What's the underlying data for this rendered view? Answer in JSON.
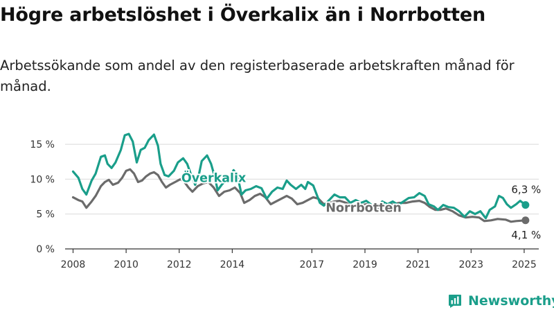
{
  "title": "Högre arbetslöshet i Överkalix än i Norrbotten",
  "subtitle": "Arbetssökande som andel av den registerbaserade arbetskraften månad för månad.",
  "brand": "Newsworthy",
  "colors": {
    "overkalix": "#1a9e8a",
    "norrbotten": "#6b6b6b",
    "grid": "#d9d9d9",
    "axis": "#333333"
  },
  "chart_data": {
    "type": "line",
    "title": "Högre arbetslöshet i Överkalix än i Norrbotten",
    "subtitle": "Arbetssökande som andel av den registerbaserade arbetskraften månad för månad.",
    "xlabel": "",
    "ylabel": "",
    "ylim": [
      0,
      17.5
    ],
    "xlim": [
      2007.7,
      2025.55
    ],
    "y_ticks": [
      0,
      5,
      10,
      15
    ],
    "y_tick_labels": [
      "0 %",
      "5 %",
      "10 %",
      "15 %"
    ],
    "x_ticks": [
      2008,
      2010,
      2012,
      2014,
      2017,
      2019,
      2021,
      2023,
      2025
    ],
    "x_tick_labels": [
      "2008",
      "2010",
      "2012",
      "2014",
      "2017",
      "2019",
      "2021",
      "2023",
      "2025"
    ],
    "grid": true,
    "series": [
      {
        "name": "Överkalix",
        "end_label": "6,3 %",
        "points": [
          [
            2008.0,
            11.1
          ],
          [
            2008.2,
            10.2
          ],
          [
            2008.35,
            8.6
          ],
          [
            2008.5,
            7.8
          ],
          [
            2008.7,
            9.8
          ],
          [
            2008.85,
            10.8
          ],
          [
            2009.05,
            13.2
          ],
          [
            2009.2,
            13.4
          ],
          [
            2009.3,
            12.2
          ],
          [
            2009.45,
            11.6
          ],
          [
            2009.6,
            12.4
          ],
          [
            2009.8,
            14.2
          ],
          [
            2009.95,
            16.3
          ],
          [
            2010.1,
            16.5
          ],
          [
            2010.25,
            15.4
          ],
          [
            2010.4,
            12.4
          ],
          [
            2010.55,
            14.2
          ],
          [
            2010.7,
            14.5
          ],
          [
            2010.85,
            15.6
          ],
          [
            2011.05,
            16.4
          ],
          [
            2011.2,
            14.8
          ],
          [
            2011.3,
            12.2
          ],
          [
            2011.45,
            10.6
          ],
          [
            2011.6,
            10.4
          ],
          [
            2011.8,
            11.2
          ],
          [
            2011.95,
            12.4
          ],
          [
            2012.15,
            13.0
          ],
          [
            2012.3,
            12.2
          ],
          [
            2012.45,
            10.6
          ],
          [
            2012.6,
            9.2
          ],
          [
            2012.75,
            10.8
          ],
          [
            2012.85,
            12.6
          ],
          [
            2013.05,
            13.4
          ],
          [
            2013.2,
            12.2
          ],
          [
            2013.35,
            10.2
          ],
          [
            2013.45,
            8.4
          ],
          [
            2013.6,
            9.2
          ],
          [
            2013.75,
            9.8
          ],
          [
            2013.95,
            10.4
          ],
          [
            2014.05,
            11.3
          ],
          [
            2014.2,
            10.4
          ],
          [
            2014.35,
            7.8
          ],
          [
            2014.5,
            8.4
          ],
          [
            2014.7,
            8.6
          ],
          [
            2014.9,
            9.0
          ],
          [
            2015.1,
            8.7
          ],
          [
            2015.3,
            7.2
          ],
          [
            2015.5,
            8.2
          ],
          [
            2015.7,
            8.8
          ],
          [
            2015.9,
            8.6
          ],
          [
            2016.05,
            9.8
          ],
          [
            2016.2,
            9.2
          ],
          [
            2016.4,
            8.6
          ],
          [
            2016.6,
            9.2
          ],
          [
            2016.75,
            8.6
          ],
          [
            2016.85,
            9.6
          ],
          [
            2017.05,
            9.1
          ],
          [
            2017.3,
            6.6
          ],
          [
            2017.45,
            6.2
          ],
          [
            2017.65,
            7.0
          ],
          [
            2017.85,
            7.8
          ],
          [
            2018.05,
            7.4
          ],
          [
            2018.25,
            7.4
          ],
          [
            2018.45,
            6.6
          ],
          [
            2018.65,
            7.0
          ],
          [
            2018.85,
            6.6
          ],
          [
            2019.05,
            6.9
          ],
          [
            2019.25,
            6.3
          ],
          [
            2019.45,
            5.9
          ],
          [
            2019.65,
            6.8
          ],
          [
            2019.85,
            6.4
          ],
          [
            2020.05,
            6.8
          ],
          [
            2020.25,
            6.3
          ],
          [
            2020.45,
            6.8
          ],
          [
            2020.65,
            7.3
          ],
          [
            2020.85,
            7.4
          ],
          [
            2021.05,
            8.0
          ],
          [
            2021.25,
            7.6
          ],
          [
            2021.4,
            6.4
          ],
          [
            2021.6,
            6.1
          ],
          [
            2021.75,
            5.6
          ],
          [
            2021.95,
            6.3
          ],
          [
            2022.15,
            6.0
          ],
          [
            2022.35,
            5.9
          ],
          [
            2022.55,
            5.4
          ],
          [
            2022.75,
            4.6
          ],
          [
            2022.95,
            5.4
          ],
          [
            2023.15,
            5.0
          ],
          [
            2023.35,
            5.4
          ],
          [
            2023.55,
            4.4
          ],
          [
            2023.7,
            5.6
          ],
          [
            2023.9,
            6.1
          ],
          [
            2024.05,
            7.6
          ],
          [
            2024.2,
            7.3
          ],
          [
            2024.35,
            6.4
          ],
          [
            2024.5,
            5.9
          ],
          [
            2024.7,
            6.4
          ],
          [
            2024.85,
            6.9
          ],
          [
            2025.05,
            6.3
          ]
        ]
      },
      {
        "name": "Norrbotten",
        "end_label": "4,1 %",
        "points": [
          [
            2008.0,
            7.4
          ],
          [
            2008.2,
            7.0
          ],
          [
            2008.35,
            6.8
          ],
          [
            2008.5,
            5.9
          ],
          [
            2008.7,
            6.8
          ],
          [
            2008.85,
            7.6
          ],
          [
            2009.05,
            9.0
          ],
          [
            2009.2,
            9.6
          ],
          [
            2009.35,
            9.9
          ],
          [
            2009.5,
            9.2
          ],
          [
            2009.7,
            9.5
          ],
          [
            2009.85,
            10.2
          ],
          [
            2010.0,
            11.2
          ],
          [
            2010.15,
            11.4
          ],
          [
            2010.3,
            10.8
          ],
          [
            2010.45,
            9.6
          ],
          [
            2010.6,
            9.8
          ],
          [
            2010.75,
            10.4
          ],
          [
            2010.9,
            10.8
          ],
          [
            2011.05,
            11.0
          ],
          [
            2011.2,
            10.6
          ],
          [
            2011.35,
            9.6
          ],
          [
            2011.5,
            8.8
          ],
          [
            2011.65,
            9.2
          ],
          [
            2011.85,
            9.6
          ],
          [
            2012.05,
            10.0
          ],
          [
            2012.2,
            9.6
          ],
          [
            2012.35,
            8.8
          ],
          [
            2012.5,
            8.2
          ],
          [
            2012.7,
            9.0
          ],
          [
            2012.9,
            9.4
          ],
          [
            2013.1,
            9.6
          ],
          [
            2013.3,
            8.8
          ],
          [
            2013.5,
            7.6
          ],
          [
            2013.7,
            8.2
          ],
          [
            2013.9,
            8.4
          ],
          [
            2014.1,
            8.8
          ],
          [
            2014.3,
            8.0
          ],
          [
            2014.45,
            6.6
          ],
          [
            2014.65,
            7.0
          ],
          [
            2014.85,
            7.6
          ],
          [
            2015.05,
            7.9
          ],
          [
            2015.25,
            7.4
          ],
          [
            2015.45,
            6.4
          ],
          [
            2015.65,
            6.8
          ],
          [
            2015.85,
            7.2
          ],
          [
            2016.05,
            7.6
          ],
          [
            2016.25,
            7.2
          ],
          [
            2016.45,
            6.4
          ],
          [
            2016.65,
            6.6
          ],
          [
            2016.85,
            7.0
          ],
          [
            2017.05,
            7.4
          ],
          [
            2017.25,
            7.2
          ],
          [
            2017.45,
            6.4
          ],
          [
            2017.65,
            6.6
          ],
          [
            2017.85,
            6.8
          ],
          [
            2018.05,
            6.9
          ],
          [
            2018.3,
            6.6
          ],
          [
            2018.55,
            6.0
          ],
          [
            2018.8,
            6.2
          ],
          [
            2019.05,
            6.4
          ],
          [
            2019.3,
            6.2
          ],
          [
            2019.55,
            5.8
          ],
          [
            2019.8,
            6.2
          ],
          [
            2020.05,
            6.4
          ],
          [
            2020.3,
            6.6
          ],
          [
            2020.55,
            6.6
          ],
          [
            2020.8,
            6.8
          ],
          [
            2021.05,
            6.9
          ],
          [
            2021.25,
            6.6
          ],
          [
            2021.45,
            6.0
          ],
          [
            2021.65,
            5.6
          ],
          [
            2021.85,
            5.6
          ],
          [
            2022.05,
            5.8
          ],
          [
            2022.3,
            5.4
          ],
          [
            2022.55,
            4.8
          ],
          [
            2022.8,
            4.5
          ],
          [
            2023.05,
            4.6
          ],
          [
            2023.3,
            4.5
          ],
          [
            2023.5,
            4.0
          ],
          [
            2023.75,
            4.1
          ],
          [
            2024.0,
            4.3
          ],
          [
            2024.3,
            4.2
          ],
          [
            2024.5,
            3.9
          ],
          [
            2024.7,
            4.0
          ],
          [
            2025.05,
            4.1
          ]
        ]
      }
    ]
  }
}
